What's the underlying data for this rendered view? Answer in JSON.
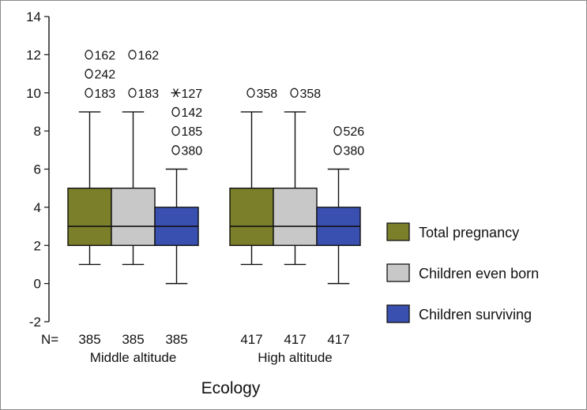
{
  "chart_data": {
    "type": "boxplot",
    "xlabel": "Ecology",
    "ylim": [
      -2,
      14
    ],
    "yticks": [
      -2,
      0,
      2,
      4,
      6,
      8,
      10,
      12,
      14
    ],
    "n_label": "N=",
    "groups": [
      "Middle altitude",
      "High altitude"
    ],
    "series": [
      {
        "name": "Total pregnancy",
        "color": "#7b7f2a"
      },
      {
        "name": "Children even born",
        "color": "#c8c8c8"
      },
      {
        "name": "Children surviving",
        "color": "#3a50b0"
      }
    ],
    "boxes": [
      {
        "group": 0,
        "series": 0,
        "n": "385",
        "min": 1,
        "q1": 2,
        "median": 3,
        "q3": 5,
        "max": 9,
        "outliers": [
          {
            "y": 12,
            "label": "162",
            "kind": "circle"
          },
          {
            "y": 11,
            "label": "242",
            "kind": "circle"
          },
          {
            "y": 10,
            "label": "183",
            "kind": "circle"
          }
        ]
      },
      {
        "group": 0,
        "series": 1,
        "n": "385",
        "min": 1,
        "q1": 2,
        "median": 3,
        "q3": 5,
        "max": 9,
        "outliers": [
          {
            "y": 12,
            "label": "162",
            "kind": "circle"
          },
          {
            "y": 10,
            "label": "183",
            "kind": "circle"
          }
        ]
      },
      {
        "group": 0,
        "series": 2,
        "n": "385",
        "min": 0,
        "q1": 2,
        "median": 3,
        "q3": 4,
        "max": 6,
        "outliers": [
          {
            "y": 10,
            "label": "127",
            "kind": "star"
          },
          {
            "y": 9,
            "label": "142",
            "kind": "circle"
          },
          {
            "y": 8,
            "label": "185",
            "kind": "circle"
          },
          {
            "y": 7,
            "label": "380",
            "kind": "circle"
          }
        ]
      },
      {
        "group": 1,
        "series": 0,
        "n": "417",
        "min": 1,
        "q1": 2,
        "median": 3,
        "q3": 5,
        "max": 9,
        "outliers": [
          {
            "y": 10,
            "label": "358",
            "kind": "circle"
          }
        ]
      },
      {
        "group": 1,
        "series": 1,
        "n": "417",
        "min": 1,
        "q1": 2,
        "median": 3,
        "q3": 5,
        "max": 9,
        "outliers": [
          {
            "y": 10,
            "label": "358",
            "kind": "circle"
          }
        ]
      },
      {
        "group": 1,
        "series": 2,
        "n": "417",
        "min": 0,
        "q1": 2,
        "median": 3,
        "q3": 4,
        "max": 6,
        "outliers": [
          {
            "y": 8,
            "label": "526",
            "kind": "circle"
          },
          {
            "y": 7,
            "label": "380",
            "kind": "circle"
          }
        ]
      }
    ],
    "legend_position": "right"
  }
}
